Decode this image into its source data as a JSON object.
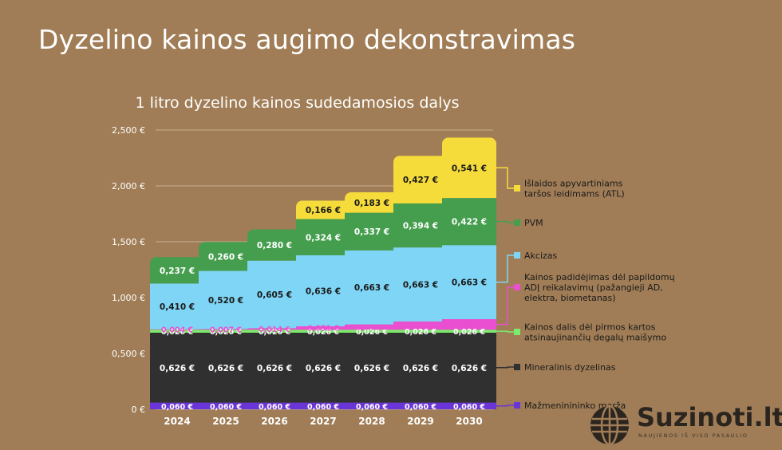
{
  "page_title": "Dyzelino kainos augimo dekonstravimas",
  "brand": {
    "name": "Suzinoti.lt",
    "tagline": "NAUJIENOS IŠ VISO PASAULIO"
  },
  "colors": {
    "background": "#a07d56",
    "margin": "#6a35d8",
    "mineral": "#303030",
    "first_gen": "#7aeb6a",
    "advanced": "#e94fd0",
    "excise": "#7fd5f5",
    "vat": "#449e4d",
    "ats": "#f6dc3b"
  },
  "chart_data": {
    "type": "bar",
    "stacked": true,
    "title": "1 litro dyzelino kainos sudedamosios dalys",
    "xlabel": "",
    "ylabel": "",
    "ylim": [
      0,
      2.5
    ],
    "ytick_labels": [
      "0 €",
      "0,500 €",
      "1,000 €",
      "1,500 €",
      "2,000 €",
      "2,500 €"
    ],
    "categories": [
      "2024",
      "2025",
      "2026",
      "2027",
      "2028",
      "2029",
      "2030"
    ],
    "series": [
      {
        "key": "margin",
        "name": "Mažmeninininko marža",
        "values": [
          0.06,
          0.06,
          0.06,
          0.06,
          0.06,
          0.06,
          0.06
        ],
        "labels": [
          "0,060 €",
          "0,060 €",
          "0,060 €",
          "0,060 €",
          "0,060 €",
          "0,060 €",
          "0,060 €"
        ]
      },
      {
        "key": "mineral",
        "name": "Mineralinis dyzelinas",
        "values": [
          0.626,
          0.626,
          0.626,
          0.626,
          0.626,
          0.626,
          0.626
        ],
        "labels": [
          "0,626 €",
          "0,626 €",
          "0,626 €",
          "0,626 €",
          "0,626 €",
          "0,626 €",
          "0,626 €"
        ]
      },
      {
        "key": "first_gen",
        "name": "Kainos dalis dėl pirmos kartos atsinaujinančių degalų maišymo",
        "values": [
          0.026,
          0.026,
          0.026,
          0.026,
          0.026,
          0.026,
          0.026
        ],
        "labels": [
          "0,026 €",
          "0,026 €",
          "0,026 €",
          "0,026 €",
          "0,026 €",
          "0,026 €",
          "0,026 €"
        ]
      },
      {
        "key": "advanced",
        "name": "Kainos padidėjimas dėl papildomų ADĮ reikalavimų (pažangieji AD, elektra, biometanas)",
        "values": [
          0.004,
          0.007,
          0.014,
          0.031,
          0.048,
          0.074,
          0.095
        ],
        "labels": [
          "0,004 €",
          "0,007 €",
          "0,014 €",
          "0,031 €",
          "0,048 €",
          "0,074 €",
          "0,095 €"
        ]
      },
      {
        "key": "excise",
        "name": "Akcizas",
        "values": [
          0.41,
          0.52,
          0.605,
          0.636,
          0.663,
          0.663,
          0.663
        ],
        "labels": [
          "0,410 €",
          "0,520 €",
          "0,605 €",
          "0,636 €",
          "0,663 €",
          "0,663 €",
          "0,663 €"
        ]
      },
      {
        "key": "vat",
        "name": "PVM",
        "values": [
          0.237,
          0.26,
          0.28,
          0.324,
          0.337,
          0.394,
          0.422
        ],
        "labels": [
          "0,237 €",
          "0,260 €",
          "0,280 €",
          "0,324 €",
          "0,337 €",
          "0,394 €",
          "0,422 €"
        ]
      },
      {
        "key": "ats",
        "name": "Išlaidos apyvartiniams taršos leidimams (ATL)",
        "values": [
          0,
          0,
          0,
          0.166,
          0.183,
          0.427,
          0.541
        ],
        "labels": [
          "",
          "",
          "",
          "0,166 €",
          "0,183 €",
          "0,427 €",
          "0,541 €"
        ]
      }
    ],
    "legend": [
      {
        "key": "ats",
        "lines": [
          "Išlaidos apyvartiniams",
          "taršos leidimams (ATL)"
        ]
      },
      {
        "key": "vat",
        "lines": [
          "PVM"
        ]
      },
      {
        "key": "excise",
        "lines": [
          "Akcizas"
        ]
      },
      {
        "key": "advanced",
        "lines": [
          "Kainos padidėjimas dėl papildomų",
          "ADĮ reikalavimų (pažangieji AD,",
          "elektra, biometanas)"
        ]
      },
      {
        "key": "first_gen",
        "lines": [
          "Kainos dalis dėl pirmos kartos",
          "atsinaujinančių degalų maišymo"
        ]
      },
      {
        "key": "mineral",
        "lines": [
          "Mineralinis dyzelinas"
        ]
      },
      {
        "key": "margin",
        "lines": [
          "Mažmeninininko marža"
        ]
      }
    ]
  }
}
